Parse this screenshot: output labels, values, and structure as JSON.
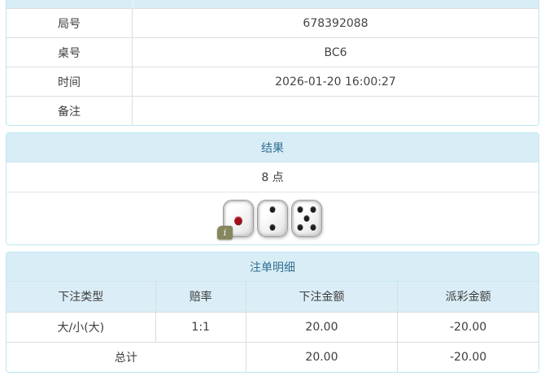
{
  "info_panel": {
    "rows": [
      {
        "label": "局号",
        "value": "678392088"
      },
      {
        "label": "桌号",
        "value": "BC6"
      },
      {
        "label": "时间",
        "value": "2026-01-20 16:00:27"
      },
      {
        "label": "备注",
        "value": ""
      }
    ]
  },
  "result_panel": {
    "title": "结果",
    "points": "8 点",
    "dice": [
      {
        "value": 1,
        "pip_color": "#a50f1d",
        "info_badge": true
      },
      {
        "value": 2,
        "pip_color": "#1d1d1d",
        "info_badge": false
      },
      {
        "value": 5,
        "pip_color": "#1d1d1d",
        "info_badge": false
      }
    ],
    "info_badge_glyph": "i"
  },
  "bets_panel": {
    "title": "注单明细",
    "columns": [
      "下注类型",
      "赔率",
      "下注金额",
      "派彩金额"
    ],
    "rows": [
      {
        "bet_type": "大/小(大)",
        "odds": "1:1",
        "bet_amount": "20.00",
        "payout": "-20.00"
      }
    ],
    "total": {
      "label": "总计",
      "bet_amount": "20.00",
      "payout": "-20.00"
    }
  },
  "colors": {
    "heading_bg": "#d9edf7",
    "heading_text": "#31708f",
    "panel_border": "#bce8f1",
    "table_header_bg": "#dbeef7",
    "negative_red": "#e03c3c",
    "die_pip_red": "#a50f1d",
    "die_pip_black": "#1d1d1d",
    "info_badge_bg": "#87875e"
  }
}
